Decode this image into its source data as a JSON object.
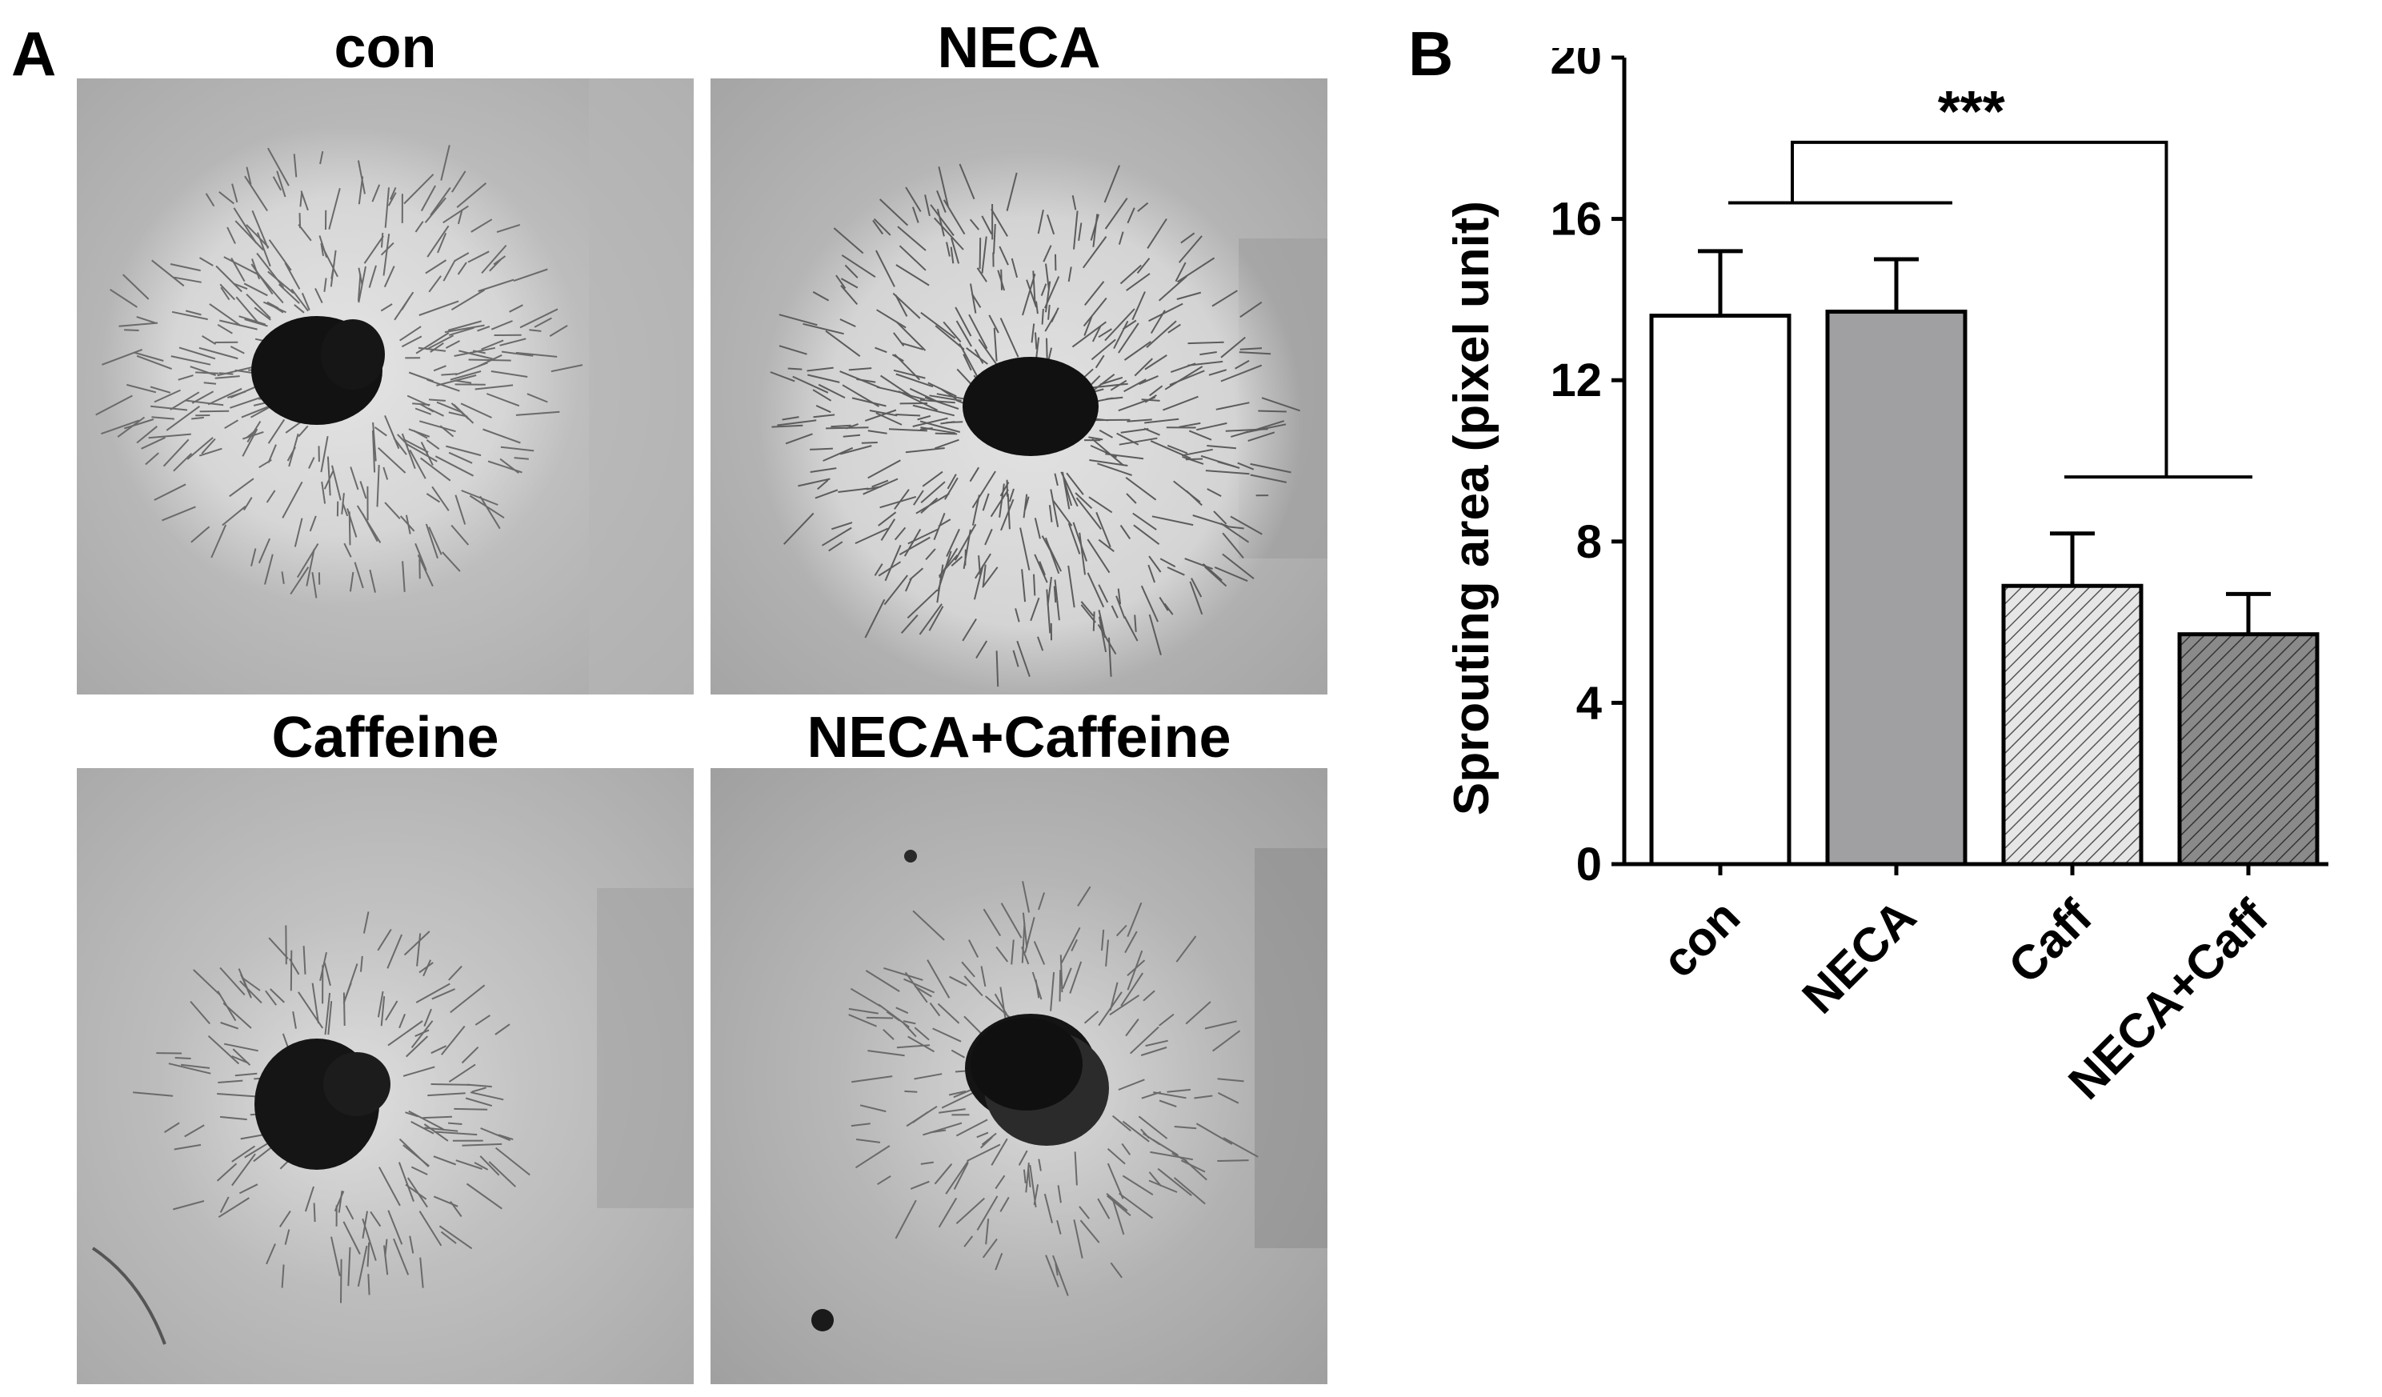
{
  "panel_a": {
    "label": "A",
    "images": [
      {
        "title": "con"
      },
      {
        "title": "NECA"
      },
      {
        "title": "Caffeine"
      },
      {
        "title": "NECA+Caffeine"
      }
    ]
  },
  "panel_b": {
    "label": "B"
  },
  "chart_data": {
    "type": "bar",
    "categories": [
      "con",
      "NECA",
      "Caff",
      "NECA+Caff"
    ],
    "values": [
      13.6,
      13.7,
      6.9,
      5.7
    ],
    "errors": [
      1.6,
      1.3,
      1.3,
      1.0
    ],
    "bar_fills": [
      "#ffffff",
      "#a0a0a2",
      "hatch-light",
      "hatch-dark"
    ],
    "ylabel": "Sprouting area (pixel unit)",
    "xlabel": "",
    "ylim": [
      0,
      20
    ],
    "yticks": [
      "0",
      "4",
      "8",
      "12",
      "16",
      "20"
    ],
    "significance": {
      "groups": [
        [
          "con",
          "NECA"
        ],
        [
          "Caff",
          "NECA+Caff"
        ]
      ],
      "label": "***"
    },
    "grid": false,
    "legend": "none"
  }
}
